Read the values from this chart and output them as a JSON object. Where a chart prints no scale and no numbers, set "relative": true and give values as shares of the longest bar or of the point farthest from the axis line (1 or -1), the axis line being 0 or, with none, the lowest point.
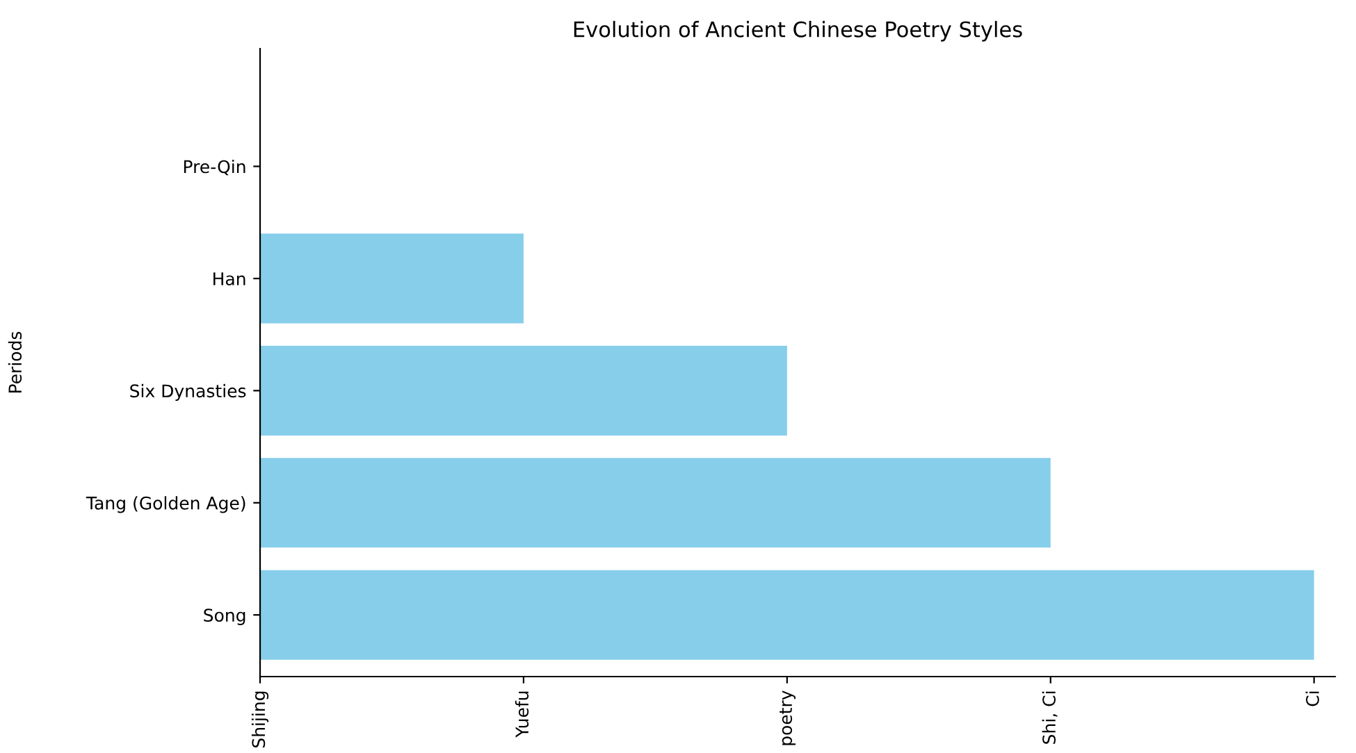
{
  "chart_data": {
    "type": "bar",
    "orientation": "horizontal",
    "relative": true,
    "title": "Evolution of Ancient Chinese Poetry Styles",
    "ylabel": "Periods",
    "categories": [
      "Pre-Qin",
      "Han",
      "Six Dynasties",
      "Tang (Golden Age)",
      "Song"
    ],
    "values": [
      0,
      0.25,
      0.5,
      0.75,
      1
    ],
    "color": "#87ceeb",
    "annotations": [
      "Shijing",
      "Yuefu",
      "poetry",
      "Shi, Ci",
      "Ci"
    ],
    "grid": false,
    "legend": false
  }
}
